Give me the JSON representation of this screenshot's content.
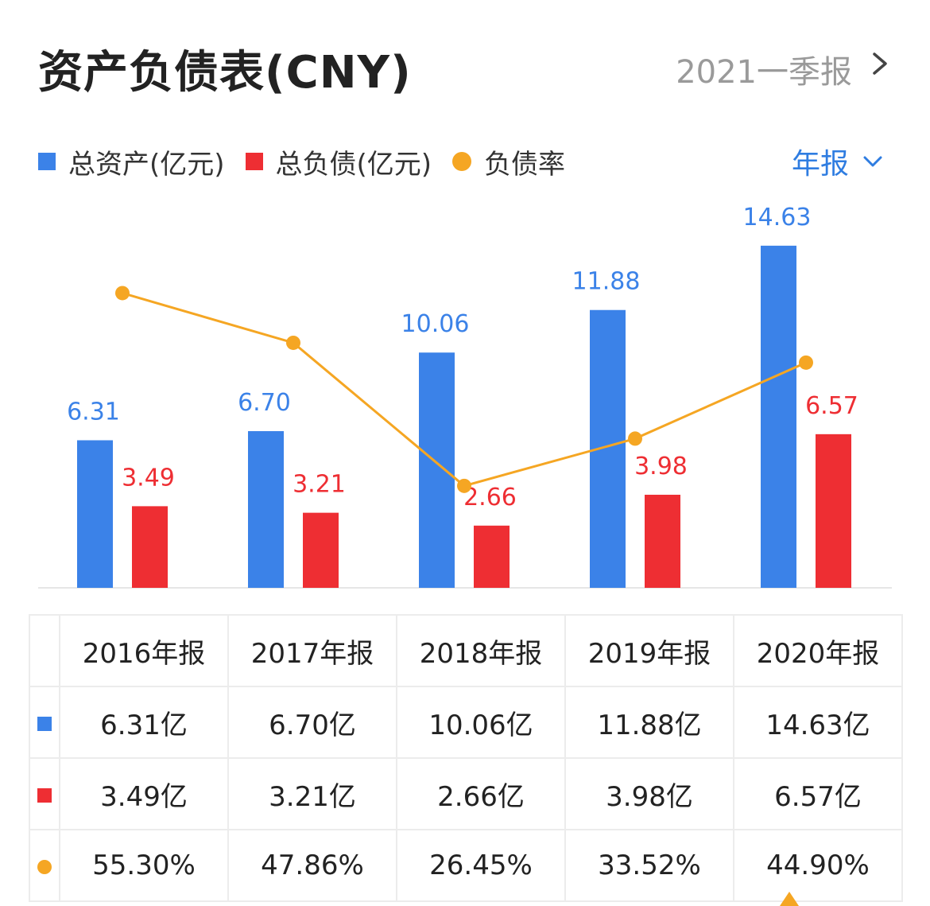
{
  "header": {
    "title": "资产负债表(CNY)",
    "period": "2021一季报"
  },
  "toggle": {
    "label": "年报"
  },
  "colors": {
    "assets": "#3b82e8",
    "liabilities": "#ee2e33",
    "ratio": "#f5a623",
    "accent": "#2f7de1"
  },
  "chart_data": {
    "type": "bar",
    "categories": [
      "2016年报",
      "2017年报",
      "2018年报",
      "2019年报",
      "2020年报"
    ],
    "series": [
      {
        "name": "总资产(亿元)",
        "type": "bar",
        "values": [
          6.31,
          6.7,
          10.06,
          11.88,
          14.63
        ],
        "labels": [
          "6.31",
          "6.70",
          "10.06",
          "11.88",
          "14.63"
        ]
      },
      {
        "name": "总负债(亿元)",
        "type": "bar",
        "values": [
          3.49,
          3.21,
          2.66,
          3.98,
          6.57
        ],
        "labels": [
          "3.49",
          "3.21",
          "2.66",
          "3.98",
          "6.57"
        ]
      },
      {
        "name": "负债率",
        "type": "line",
        "values": [
          55.3,
          47.86,
          26.45,
          33.52,
          44.9
        ]
      }
    ],
    "legend_position": "top-left",
    "grid": false
  },
  "table": {
    "columns": [
      "2016年报",
      "2017年报",
      "2018年报",
      "2019年报",
      "2020年报"
    ],
    "rows": [
      {
        "cells": [
          "6.31亿",
          "6.70亿",
          "10.06亿",
          "11.88亿",
          "14.63亿"
        ]
      },
      {
        "cells": [
          "3.49亿",
          "3.21亿",
          "2.66亿",
          "3.98亿",
          "6.57亿"
        ]
      },
      {
        "cells": [
          "55.30%",
          "47.86%",
          "26.45%",
          "33.52%",
          "44.90%"
        ]
      }
    ]
  }
}
